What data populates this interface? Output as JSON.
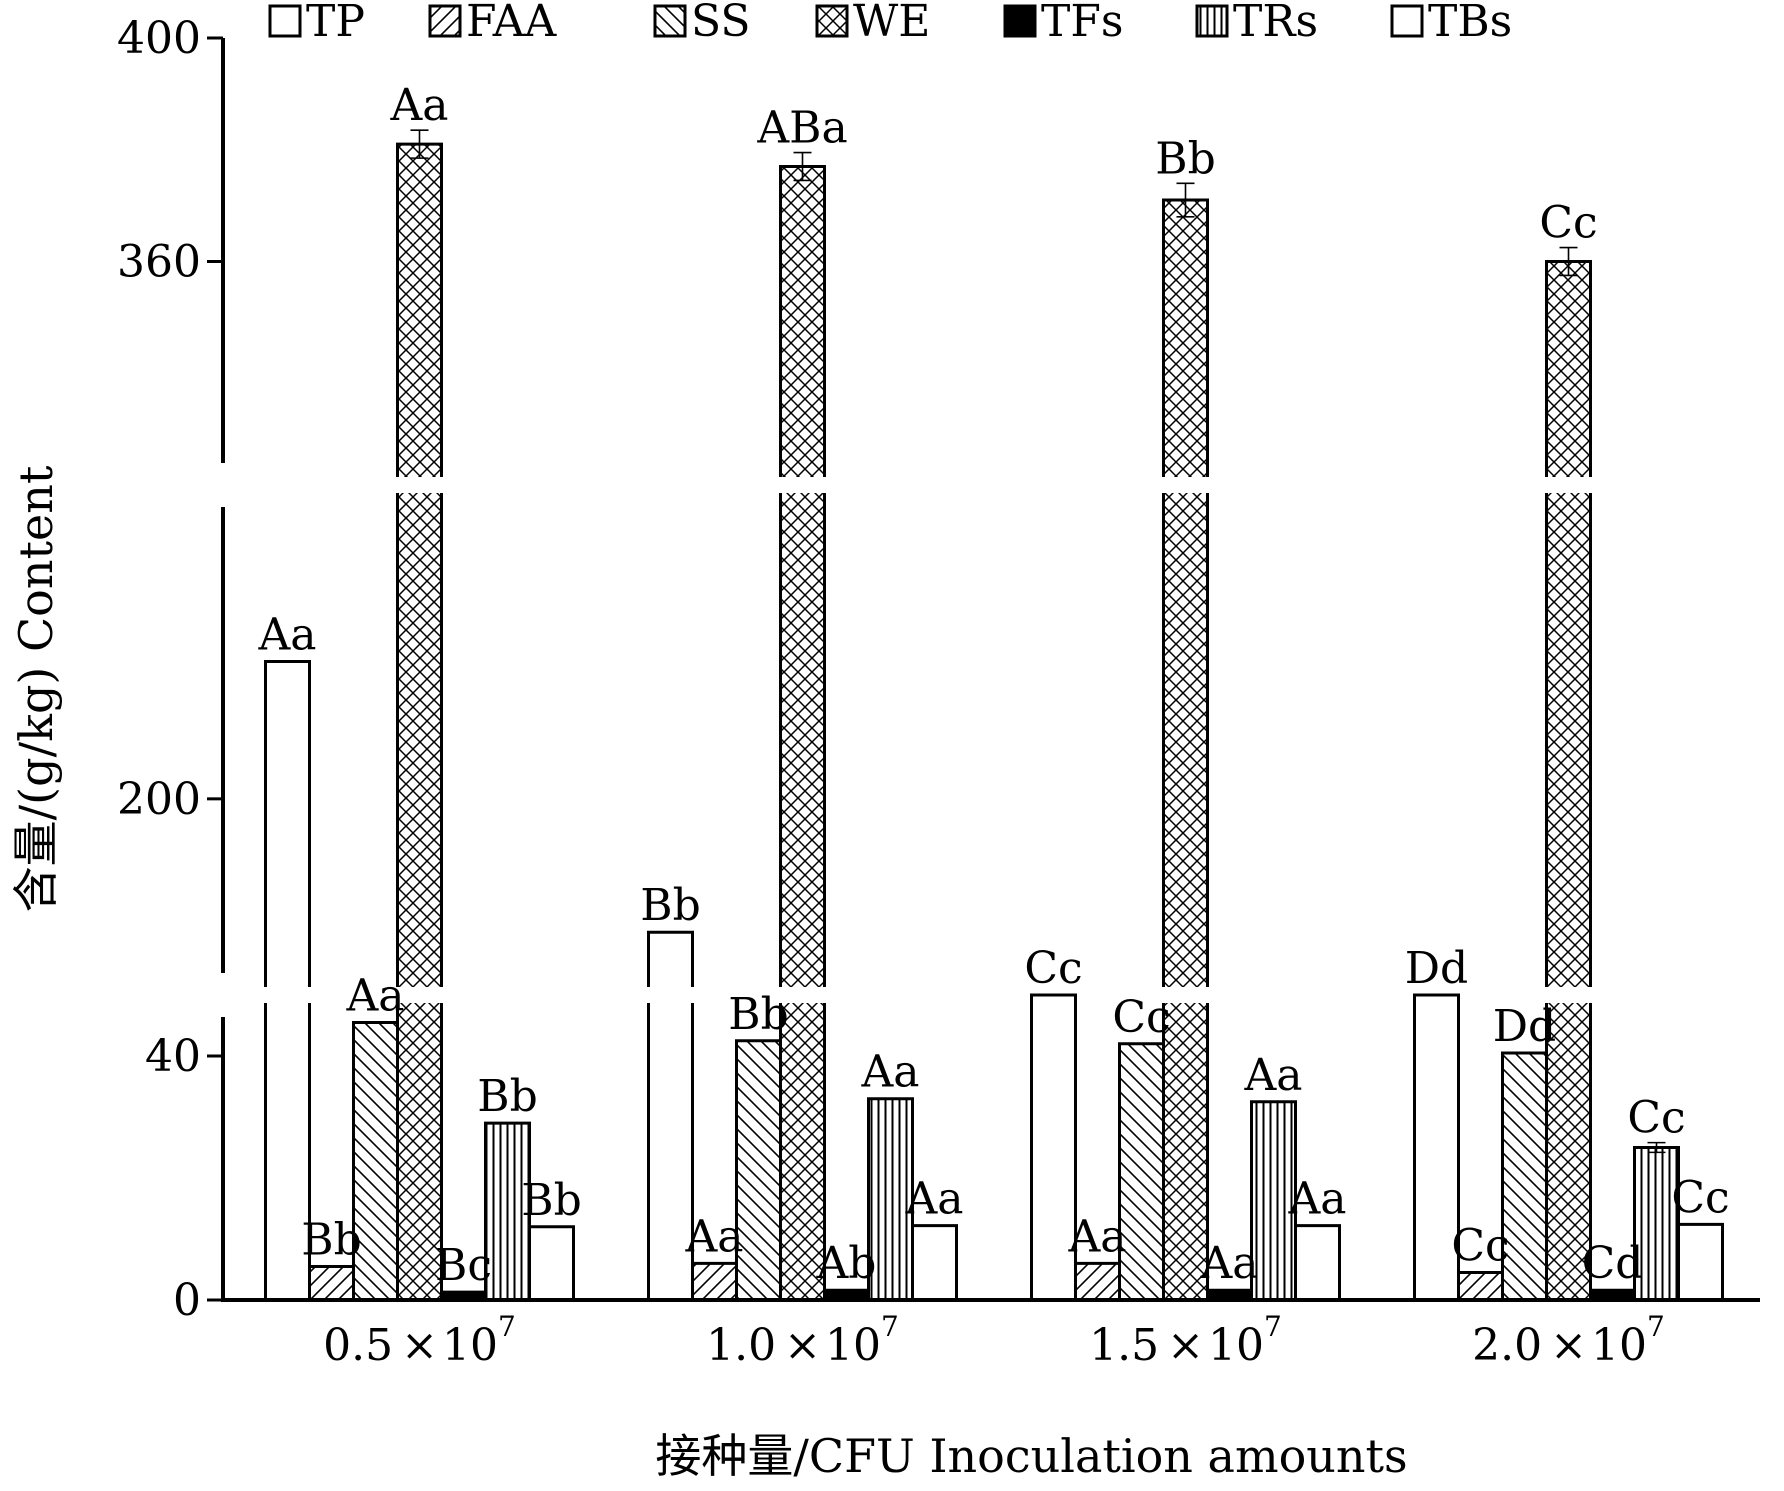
{
  "chart_data": {
    "type": "bar",
    "xlabel": "接种量/CFU Inoculation amounts",
    "ylabel": "含量/(g/kg) Content",
    "y_broken": true,
    "segments": [
      {
        "range": [
          0,
          50
        ],
        "ticks": [
          0,
          40
        ]
      },
      {
        "range": [
          150,
          280
        ],
        "ticks": [
          200
        ]
      },
      {
        "range": [
          320,
          400
        ],
        "ticks": [
          360,
          400
        ]
      }
    ],
    "categories": [
      {
        "base": "0.5",
        "exp": "7",
        "times": "×",
        "ten": "10"
      },
      {
        "base": "1.0",
        "exp": "7",
        "times": "×",
        "ten": "10"
      },
      {
        "base": "1.5",
        "exp": "7",
        "times": "×",
        "ten": "10"
      },
      {
        "base": "2.0",
        "exp": "7",
        "times": "×",
        "ten": "10"
      }
    ],
    "series": [
      {
        "name": "TP",
        "pattern": "none",
        "values": [
          235,
          166,
          143,
          132
        ],
        "labels": [
          "Aa",
          "Bb",
          "Cc",
          "Dd"
        ]
      },
      {
        "name": "FAA",
        "pattern": "diag-fwd",
        "values": [
          5.5,
          6.0,
          6.0,
          4.5
        ],
        "labels": [
          "Bb",
          "Aa",
          "Aa",
          "Cc"
        ]
      },
      {
        "name": "SS",
        "pattern": "diag-back",
        "values": [
          45.5,
          42.5,
          42.0,
          40.5
        ],
        "labels": [
          "Aa",
          "Bb",
          "Cc",
          "Dd"
        ]
      },
      {
        "name": "WE",
        "pattern": "cross",
        "values": [
          381,
          377,
          371,
          360
        ],
        "labels": [
          "Aa",
          "ABa",
          "Bb",
          "Cc"
        ],
        "errors": [
          2.5,
          2.5,
          3,
          2.5
        ]
      },
      {
        "name": "TFs",
        "pattern": "solid",
        "values": [
          1.3,
          1.6,
          1.6,
          1.6
        ],
        "labels": [
          "Bc",
          "Ab",
          "Aa",
          "Cd"
        ]
      },
      {
        "name": "TRs",
        "pattern": "vertical",
        "values": [
          29,
          33,
          32.5,
          25
        ],
        "labels": [
          "Bb",
          "Aa",
          "Aa",
          "Cc"
        ],
        "errors": [
          0,
          0,
          0,
          0.8
        ]
      },
      {
        "name": "TBs",
        "pattern": "none",
        "values": [
          12,
          12.2,
          12.2,
          12.4
        ],
        "labels": [
          "Bb",
          "Aa",
          "Aa",
          "Cc"
        ]
      }
    ],
    "legend": {
      "placement": "top"
    },
    "grid": false
  }
}
